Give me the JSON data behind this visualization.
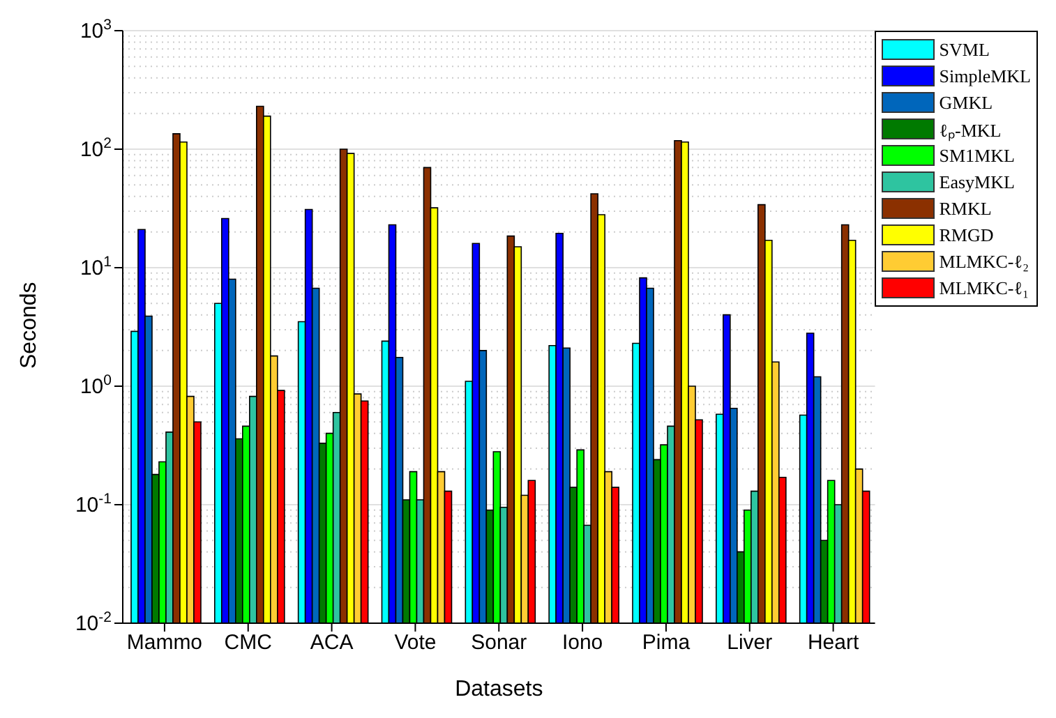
{
  "chart_data": {
    "type": "bar",
    "xlabel": "Datasets",
    "ylabel": "Seconds",
    "categories": [
      "Mammo",
      "CMC",
      "ACA",
      "Vote",
      "Sonar",
      "Iono",
      "Pima",
      "Liver",
      "Heart"
    ],
    "log": "y",
    "ylim": [
      0.01,
      1000
    ],
    "yticks": [
      {
        "value": 0.01,
        "label": "10$^{-2}$"
      },
      {
        "value": 0.1,
        "label": "10$^{-1}$"
      },
      {
        "value": 1,
        "label": "10$^{0}$"
      },
      {
        "value": 10,
        "label": "10$^{1}$"
      },
      {
        "value": 100,
        "label": "10$^{2}$"
      },
      {
        "value": 1000,
        "label": "10$^{3}$"
      }
    ],
    "grid": "y",
    "legend": "top right",
    "series": [
      {
        "name": "SVML",
        "color": "#00ffff",
        "values": [
          2.9,
          5.0,
          3.5,
          2.4,
          1.1,
          2.2,
          2.3,
          0.58,
          0.57
        ]
      },
      {
        "name": "SimpleMKL",
        "color": "#0000ff",
        "values": [
          21,
          26,
          31,
          23,
          16,
          19.5,
          8.2,
          4.0,
          2.8
        ]
      },
      {
        "name": "GMKL",
        "color": "#0066bb",
        "values": [
          3.9,
          8.0,
          6.7,
          1.75,
          2.0,
          2.1,
          6.7,
          0.65,
          1.2
        ]
      },
      {
        "name": "ℓₚ-MKL",
        "color": "#007a00",
        "values": [
          0.18,
          0.36,
          0.33,
          0.11,
          0.09,
          0.14,
          0.24,
          0.04,
          0.05
        ]
      },
      {
        "name": "SM1MKL",
        "color": "#00ff00",
        "values": [
          0.23,
          0.46,
          0.4,
          0.19,
          0.28,
          0.29,
          0.32,
          0.09,
          0.16
        ]
      },
      {
        "name": "EasyMKL",
        "color": "#2ec4a0",
        "values": [
          0.41,
          0.82,
          0.6,
          0.11,
          0.095,
          0.067,
          0.46,
          0.13,
          0.1
        ]
      },
      {
        "name": "RMKL",
        "color": "#8b3000",
        "values": [
          135,
          230,
          100,
          70,
          18.5,
          42,
          118,
          34,
          23
        ]
      },
      {
        "name": "RMGD",
        "color": "#ffff00",
        "values": [
          115,
          190,
          92,
          32,
          15,
          28,
          115,
          17,
          17
        ]
      },
      {
        "name": "MLMKC-ℓ₂",
        "color": "#ffcc33",
        "values": [
          0.82,
          1.8,
          0.86,
          0.19,
          0.12,
          0.19,
          1.0,
          1.6,
          0.2
        ]
      },
      {
        "name": "MLMKC-ℓ₁",
        "color": "#ff0000",
        "values": [
          0.5,
          0.92,
          0.75,
          0.13,
          0.16,
          0.14,
          0.52,
          0.17,
          0.13
        ]
      }
    ]
  }
}
